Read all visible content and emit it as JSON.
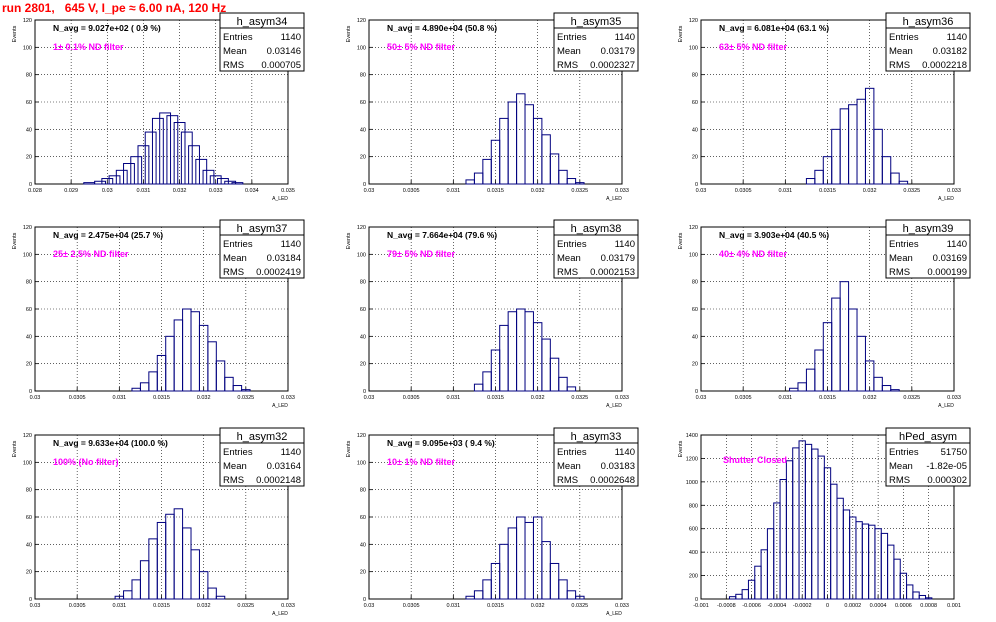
{
  "page": {
    "title": "run 2801,   645 V, I_pe ≈ 6.00 nA, 120 Hz"
  },
  "colors": {
    "histogram": "#00007f",
    "label": "#ff00ff",
    "grid": "#000000",
    "title": "#ff0000"
  },
  "chart_data": [
    {
      "type": "bar",
      "name": "h_asym34",
      "ylabel": "Events",
      "xlabel": "A_LED",
      "avg_text": "N_avg = 9.027e+02 ( 0.9 %)",
      "filter_text": "1± 0.1% ND filter",
      "stats": {
        "entries_label": "Entries",
        "entries": "1140",
        "mean_label": "Mean",
        "mean": "0.03146",
        "rms_label": "RMS",
        "rms": "0.000705"
      },
      "xlim": [
        0.028,
        0.035
      ],
      "ylim": [
        0,
        120
      ],
      "xticks": [
        "0.028",
        "0.029",
        "0.03",
        "0.031",
        "0.032",
        "0.033",
        "0.034",
        "0.035"
      ],
      "yticks": [
        "0",
        "20",
        "40",
        "60",
        "80",
        "100",
        "120"
      ],
      "grid": true,
      "x": [
        0.0295,
        0.0298,
        0.03,
        0.0302,
        0.0304,
        0.0306,
        0.0308,
        0.031,
        0.0312,
        0.0314,
        0.0316,
        0.0318,
        0.032,
        0.0322,
        0.0324,
        0.0326,
        0.0328,
        0.033,
        0.0332,
        0.0334,
        0.0336
      ],
      "values": [
        1,
        2,
        4,
        6,
        10,
        15,
        20,
        28,
        38,
        48,
        52,
        50,
        45,
        38,
        28,
        18,
        10,
        6,
        4,
        2,
        1
      ]
    },
    {
      "type": "bar",
      "name": "h_asym35",
      "ylabel": "Events",
      "xlabel": "A_LED",
      "avg_text": "N_avg = 4.890e+04 (50.8 %)",
      "filter_text": "50± 5% ND filter",
      "stats": {
        "entries_label": "Entries",
        "entries": "1140",
        "mean_label": "Mean",
        "mean": "0.03179",
        "rms_label": "RMS",
        "rms": "0.0002327"
      },
      "xlim": [
        0.03,
        0.033
      ],
      "ylim": [
        0,
        120
      ],
      "xticks": [
        "0.03",
        "0.0305",
        "0.031",
        "0.0315",
        "0.032",
        "0.0325",
        "0.033"
      ],
      "yticks": [
        "0",
        "20",
        "40",
        "60",
        "80",
        "100",
        "120"
      ],
      "grid": true,
      "x": [
        0.0312,
        0.0313,
        0.0314,
        0.0315,
        0.0316,
        0.0317,
        0.0318,
        0.0319,
        0.032,
        0.0321,
        0.0322,
        0.0323,
        0.0324,
        0.0325
      ],
      "values": [
        3,
        8,
        18,
        32,
        48,
        60,
        66,
        58,
        48,
        36,
        22,
        10,
        4,
        1
      ]
    },
    {
      "type": "bar",
      "name": "h_asym36",
      "ylabel": "Events",
      "xlabel": "A_LED",
      "avg_text": "N_avg = 6.081e+04 (63.1 %)",
      "filter_text": "63± 5% ND filter",
      "stats": {
        "entries_label": "Entries",
        "entries": "1140",
        "mean_label": "Mean",
        "mean": "0.03182",
        "rms_label": "RMS",
        "rms": "0.0002218"
      },
      "xlim": [
        0.03,
        0.033
      ],
      "ylim": [
        0,
        120
      ],
      "xticks": [
        "0.03",
        "0.0305",
        "0.031",
        "0.0315",
        "0.032",
        "0.0325",
        "0.033"
      ],
      "yticks": [
        "0",
        "20",
        "40",
        "60",
        "80",
        "100",
        "120"
      ],
      "grid": true,
      "x": [
        0.0313,
        0.0314,
        0.0315,
        0.0316,
        0.0317,
        0.0318,
        0.0319,
        0.032,
        0.0321,
        0.0322,
        0.0323,
        0.0324
      ],
      "values": [
        4,
        10,
        20,
        40,
        55,
        58,
        62,
        70,
        40,
        20,
        8,
        2
      ]
    },
    {
      "type": "bar",
      "name": "h_asym37",
      "ylabel": "Events",
      "xlabel": "A_LED",
      "avg_text": "N_avg = 2.475e+04 (25.7 %)",
      "filter_text": "25± 2.5% ND filter",
      "stats": {
        "entries_label": "Entries",
        "entries": "1140",
        "mean_label": "Mean",
        "mean": "0.03184",
        "rms_label": "RMS",
        "rms": "0.0002419"
      },
      "xlim": [
        0.03,
        0.033
      ],
      "ylim": [
        0,
        120
      ],
      "xticks": [
        "0.03",
        "0.0305",
        "0.031",
        "0.0315",
        "0.032",
        "0.0325",
        "0.033"
      ],
      "yticks": [
        "0",
        "20",
        "40",
        "60",
        "80",
        "100",
        "120"
      ],
      "grid": true,
      "x": [
        0.0312,
        0.0313,
        0.0314,
        0.0315,
        0.0316,
        0.0317,
        0.0318,
        0.0319,
        0.032,
        0.0321,
        0.0322,
        0.0323,
        0.0324,
        0.0325
      ],
      "values": [
        2,
        6,
        14,
        26,
        40,
        52,
        60,
        58,
        48,
        36,
        22,
        10,
        4,
        1
      ]
    },
    {
      "type": "bar",
      "name": "h_asym38",
      "ylabel": "Events",
      "xlabel": "A_LED",
      "avg_text": "N_avg = 7.664e+04 (79.6 %)",
      "filter_text": "79± 5% ND filter",
      "stats": {
        "entries_label": "Entries",
        "entries": "1140",
        "mean_label": "Mean",
        "mean": "0.03179",
        "rms_label": "RMS",
        "rms": "0.0002153"
      },
      "xlim": [
        0.03,
        0.033
      ],
      "ylim": [
        0,
        120
      ],
      "xticks": [
        "0.03",
        "0.0305",
        "0.031",
        "0.0315",
        "0.032",
        "0.0325",
        "0.033"
      ],
      "yticks": [
        "0",
        "20",
        "40",
        "60",
        "80",
        "100",
        "120"
      ],
      "grid": true,
      "x": [
        0.0313,
        0.0314,
        0.0315,
        0.0316,
        0.0317,
        0.0318,
        0.0319,
        0.032,
        0.0321,
        0.0322,
        0.0323,
        0.0324
      ],
      "values": [
        5,
        14,
        30,
        48,
        58,
        60,
        58,
        50,
        38,
        24,
        10,
        3
      ]
    },
    {
      "type": "bar",
      "name": "h_asym39",
      "ylabel": "Events",
      "xlabel": "A_LED",
      "avg_text": "N_avg = 3.903e+04 (40.5 %)",
      "filter_text": "40± 4% ND filter",
      "stats": {
        "entries_label": "Entries",
        "entries": "1140",
        "mean_label": "Mean",
        "mean": "0.03169",
        "rms_label": "RMS",
        "rms": "0.000199"
      },
      "xlim": [
        0.03,
        0.033
      ],
      "ylim": [
        0,
        120
      ],
      "xticks": [
        "0.03",
        "0.0305",
        "0.031",
        "0.0315",
        "0.032",
        "0.0325",
        "0.033"
      ],
      "yticks": [
        "0",
        "20",
        "40",
        "60",
        "80",
        "100",
        "120"
      ],
      "grid": true,
      "x": [
        0.0311,
        0.0312,
        0.0313,
        0.0314,
        0.0315,
        0.0316,
        0.0317,
        0.0318,
        0.0319,
        0.032,
        0.0321,
        0.0322,
        0.0323
      ],
      "values": [
        2,
        6,
        16,
        30,
        50,
        68,
        80,
        60,
        40,
        22,
        10,
        4,
        1
      ]
    },
    {
      "type": "bar",
      "name": "h_asym32",
      "ylabel": "Events",
      "xlabel": "A_LED",
      "avg_text": "N_avg = 9.633e+04 (100.0 %)",
      "filter_text": "100% (No filter)",
      "stats": {
        "entries_label": "Entries",
        "entries": "1140",
        "mean_label": "Mean",
        "mean": "0.03164",
        "rms_label": "RMS",
        "rms": "0.0002148"
      },
      "xlim": [
        0.03,
        0.033
      ],
      "ylim": [
        0,
        120
      ],
      "xticks": [
        "0.03",
        "0.0305",
        "0.031",
        "0.0315",
        "0.032",
        "0.0325",
        "0.033"
      ],
      "yticks": [
        "0",
        "20",
        "40",
        "60",
        "80",
        "100",
        "120"
      ],
      "grid": true,
      "x": [
        0.031,
        0.0311,
        0.0312,
        0.0313,
        0.0314,
        0.0315,
        0.0316,
        0.0317,
        0.0318,
        0.0319,
        0.032,
        0.0321,
        0.0322
      ],
      "values": [
        2,
        6,
        14,
        28,
        44,
        56,
        62,
        66,
        52,
        36,
        20,
        8,
        2
      ]
    },
    {
      "type": "bar",
      "name": "h_asym33",
      "ylabel": "Events",
      "xlabel": "A_LED",
      "avg_text": "N_avg = 9.095e+03 ( 9.4 %)",
      "filter_text": "10± 1% ND filter",
      "stats": {
        "entries_label": "Entries",
        "entries": "1140",
        "mean_label": "Mean",
        "mean": "0.03183",
        "rms_label": "RMS",
        "rms": "0.0002648"
      },
      "xlim": [
        0.03,
        0.033
      ],
      "ylim": [
        0,
        120
      ],
      "xticks": [
        "0.03",
        "0.0305",
        "0.031",
        "0.0315",
        "0.032",
        "0.0325",
        "0.033"
      ],
      "yticks": [
        "0",
        "20",
        "40",
        "60",
        "80",
        "100",
        "120"
      ],
      "grid": true,
      "x": [
        0.0312,
        0.0313,
        0.0314,
        0.0315,
        0.0316,
        0.0317,
        0.0318,
        0.0319,
        0.032,
        0.0321,
        0.0322,
        0.0323,
        0.0324,
        0.0325
      ],
      "values": [
        2,
        6,
        14,
        26,
        40,
        52,
        60,
        56,
        60,
        42,
        26,
        14,
        6,
        2
      ]
    },
    {
      "type": "bar",
      "name": "hPed_asym",
      "ylabel": "Events",
      "xlabel": "",
      "avg_text": "",
      "filter_text": "Shutter Closed",
      "stats": {
        "entries_label": "Entries",
        "entries": "51750",
        "mean_label": "Mean",
        "mean": "-1.82e-05",
        "rms_label": "RMS",
        "rms": "0.000302"
      },
      "xlim": [
        -0.001,
        0.001
      ],
      "ylim": [
        0,
        1400
      ],
      "xticks": [
        "-0.001",
        "-0.0008",
        "-0.0006",
        "-0.0004",
        "-0.0002",
        "0",
        "0.0002",
        "0.0004",
        "0.0006",
        "0.0008",
        "0.001"
      ],
      "yticks": [
        "0",
        "200",
        "400",
        "600",
        "800",
        "1000",
        "1200",
        "1400"
      ],
      "grid": true,
      "x": [
        -0.00075,
        -0.0007,
        -0.00065,
        -0.0006,
        -0.00055,
        -0.0005,
        -0.00045,
        -0.0004,
        -0.00035,
        -0.0003,
        -0.00025,
        -0.0002,
        -0.00015,
        -0.0001,
        -5e-05,
        0.0,
        5e-05,
        0.0001,
        0.00015,
        0.0002,
        0.00025,
        0.0003,
        0.00035,
        0.0004,
        0.00045,
        0.0005,
        0.00055,
        0.0006,
        0.00065,
        0.0007,
        0.00075,
        0.0008
      ],
      "values": [
        20,
        40,
        80,
        160,
        280,
        420,
        600,
        820,
        1020,
        1180,
        1290,
        1350,
        1320,
        1280,
        1220,
        1120,
        980,
        860,
        760,
        700,
        660,
        640,
        630,
        600,
        560,
        460,
        340,
        220,
        120,
        60,
        30,
        10
      ]
    }
  ]
}
